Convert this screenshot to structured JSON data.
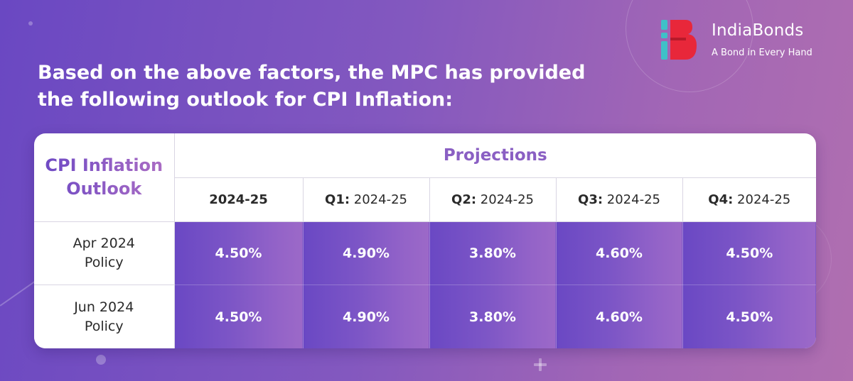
{
  "logo": {
    "name": "IndiaBonds",
    "tagline": "A Bond in Every Hand",
    "colors": {
      "teal": "#3fc0c8",
      "red": "#e8273a"
    }
  },
  "headline": {
    "line1": "Based on the above factors, the MPC has provided",
    "line2": "the following outlook for CPI Inflation:"
  },
  "table": {
    "corner_title_line1": "CPI Inflation",
    "corner_title_line2": "Outlook",
    "group_header": "Projections",
    "periods": [
      {
        "prefix": "",
        "label": "2024-25",
        "all_bold": true
      },
      {
        "prefix": "Q1:",
        "label": " 2024-25"
      },
      {
        "prefix": "Q2:",
        "label": " 2024-25"
      },
      {
        "prefix": "Q3:",
        "label": " 2024-25"
      },
      {
        "prefix": "Q4:",
        "label": " 2024-25"
      }
    ],
    "rows": [
      {
        "label_line1": "Apr 2024",
        "label_line2": "Policy",
        "values": [
          "4.50%",
          "4.90%",
          "3.80%",
          "4.60%",
          "4.50%"
        ]
      },
      {
        "label_line1": "Jun 2024",
        "label_line2": "Policy",
        "values": [
          "4.50%",
          "4.90%",
          "3.80%",
          "4.60%",
          "4.50%"
        ]
      }
    ]
  },
  "colors": {
    "background_start": "#6a48c2",
    "background_end": "#b06fb0",
    "projections_text": "#8a5fc3",
    "value_band": "#7d56c6"
  }
}
